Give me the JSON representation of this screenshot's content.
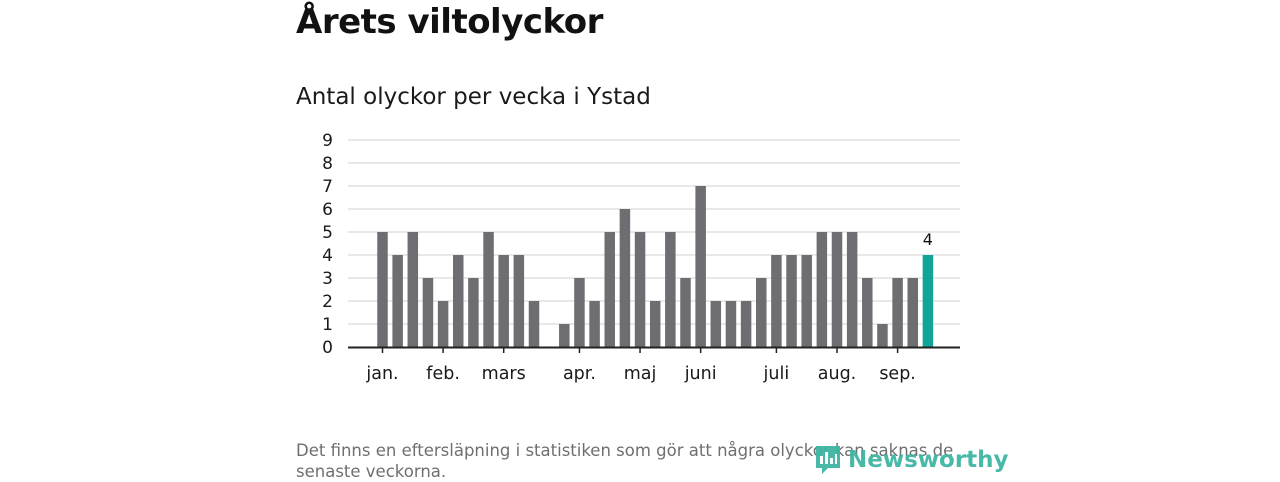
{
  "header": {
    "title": "Årets viltolyckor",
    "subtitle": "Antal olyckor per vecka i Ystad"
  },
  "footnote": "Det finns en eftersläpning i statistiken som gör att några olyckor kan saknas de senaste veckorna.",
  "brand": {
    "name": "Newsworthy",
    "icon": "newsworthy-logo-icon",
    "color": "#3fb5a3"
  },
  "chart_data": {
    "type": "bar",
    "title": "Antal olyckor per vecka i Ystad",
    "xlabel": "",
    "ylabel": "",
    "ylim": [
      0,
      9
    ],
    "yticks": [
      0,
      1,
      2,
      3,
      4,
      5,
      6,
      7,
      8,
      9
    ],
    "grid": true,
    "x_tick_labels": [
      {
        "label": "jan.",
        "week": 1
      },
      {
        "label": "feb.",
        "week": 5
      },
      {
        "label": "mars",
        "week": 9
      },
      {
        "label": "apr.",
        "week": 14
      },
      {
        "label": "maj",
        "week": 18
      },
      {
        "label": "juni",
        "week": 22
      },
      {
        "label": "juli",
        "week": 27
      },
      {
        "label": "aug.",
        "week": 31
      },
      {
        "label": "sep.",
        "week": 35
      }
    ],
    "weeks": [
      1,
      2,
      3,
      4,
      5,
      6,
      7,
      8,
      9,
      10,
      11,
      12,
      13,
      14,
      15,
      16,
      17,
      18,
      19,
      20,
      21,
      22,
      23,
      24,
      25,
      26,
      27,
      28,
      29,
      30,
      31,
      32,
      33,
      34,
      35,
      36,
      37
    ],
    "values": [
      5,
      4,
      5,
      3,
      2,
      4,
      3,
      5,
      4,
      4,
      2,
      0,
      1,
      3,
      2,
      5,
      6,
      5,
      2,
      5,
      3,
      7,
      2,
      2,
      2,
      3,
      4,
      4,
      4,
      5,
      5,
      5,
      3,
      1,
      3,
      3,
      4
    ],
    "highlight": {
      "week": 37,
      "value": 4,
      "label": "4"
    },
    "colors": {
      "bar": "#6e6e72",
      "highlight": "#10a596",
      "grid": "#d9d9d9",
      "axis": "#222222"
    }
  }
}
